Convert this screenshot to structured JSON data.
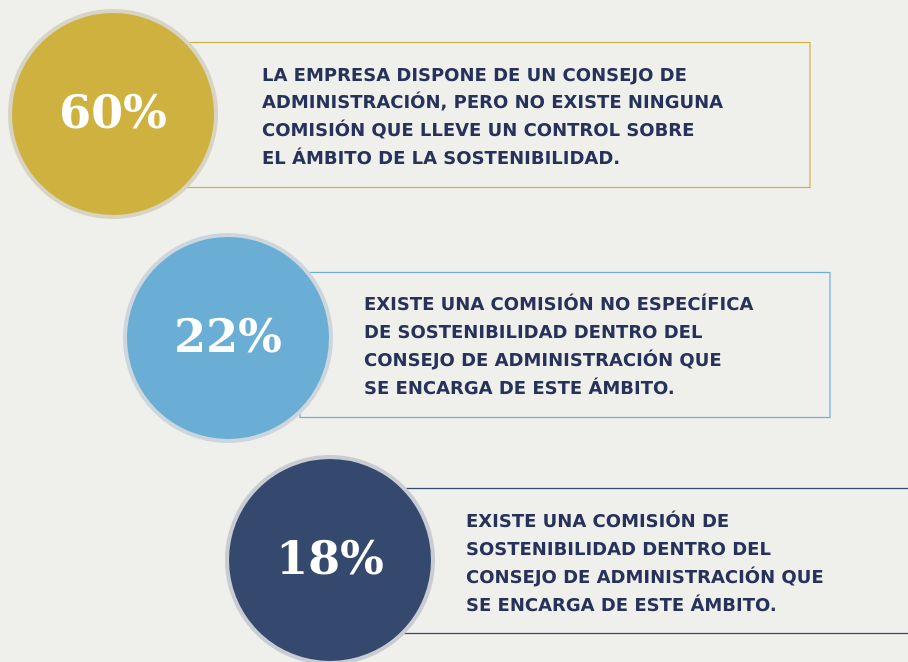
{
  "items": [
    {
      "value": "60%",
      "lines": [
        "LA EMPRESA DISPONE DE UN CONSEJO DE",
        "ADMINISTRACIÓN, PERO NO EXISTE NINGUNA",
        "COMISIÓN QUE LLEVE UN CONTROL SOBRE",
        "EL ÁMBITO DE LA SOSTENIBILIDAD."
      ]
    },
    {
      "value": "22%",
      "lines": [
        "EXISTE UNA COMISIÓN NO ESPECÍFICA",
        "DE SOSTENIBILIDAD DENTRO DEL",
        "CONSEJO DE ADMINISTRACIÓN QUE",
        "SE ENCARGA DE ESTE ÁMBITO."
      ]
    },
    {
      "value": "18%",
      "lines": [
        "EXISTE UNA COMISIÓN DE",
        "SOSTENIBILIDAD DENTRO DEL",
        "CONSEJO DE ADMINISTRACIÓN QUE",
        "SE ENCARGA DE ESTE ÁMBITO."
      ]
    }
  ]
}
